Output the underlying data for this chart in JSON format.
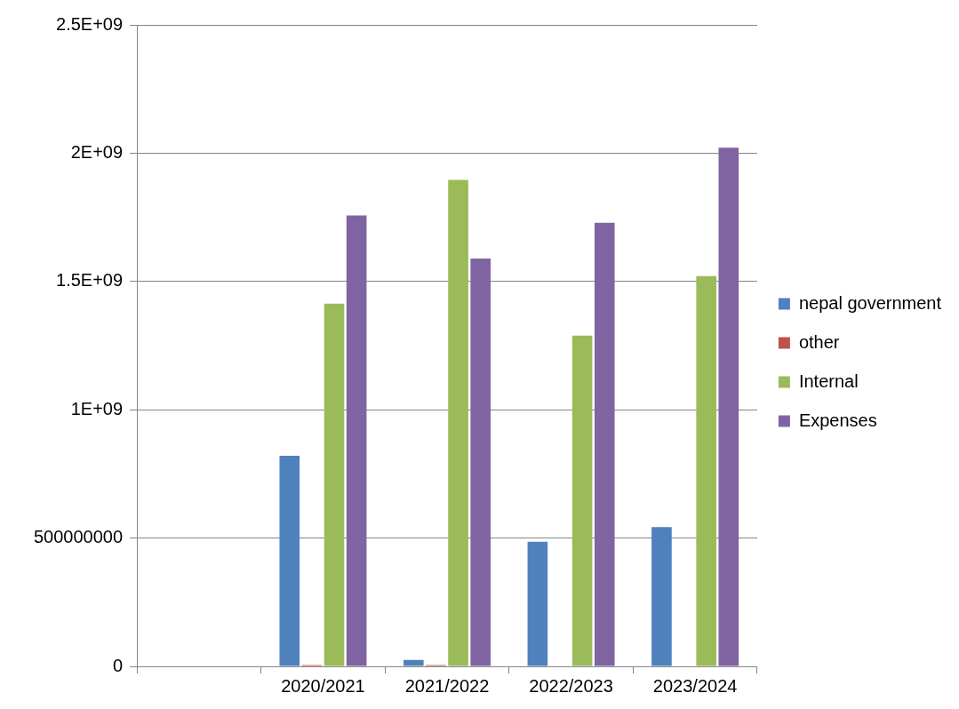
{
  "chart_data": {
    "type": "bar",
    "categories": [
      null,
      "2020/2021",
      "2021/2022",
      "2022/2023",
      "2023/2024"
    ],
    "series": [
      {
        "name": "nepal government",
        "color": "#4f81bd",
        "values": [
          null,
          821000000,
          25000000,
          486000000,
          543000000
        ]
      },
      {
        "name": "other",
        "color": "#c0504d",
        "values": [
          null,
          5000000,
          5000000,
          null,
          null
        ]
      },
      {
        "name": "Internal",
        "color": "#9bbb59",
        "values": [
          null,
          1414000000,
          1896000000,
          1289000000,
          1521000000
        ]
      },
      {
        "name": "Expenses",
        "color": "#8064a2",
        "values": [
          null,
          1757000000,
          1589000000,
          1729000000,
          2021000000
        ]
      }
    ],
    "ylim": [
      0,
      2500000000
    ],
    "yticks": [
      {
        "value": 0,
        "label": "0"
      },
      {
        "value": 500000000,
        "label": "500000000"
      },
      {
        "value": 1000000000,
        "label": "1E+09"
      },
      {
        "value": 1500000000,
        "label": "1.5E+09"
      },
      {
        "value": 2000000000,
        "label": "2E+09"
      },
      {
        "value": 2500000000,
        "label": "2.5E+09"
      }
    ],
    "grid": "y",
    "legend": "right"
  }
}
